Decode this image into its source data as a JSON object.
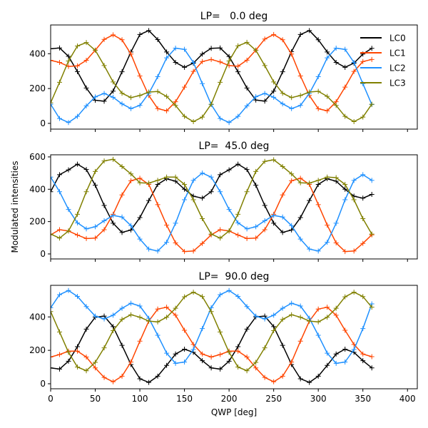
{
  "figure": {
    "ylabel": "Modulated intensities",
    "xlabel": "QWP [deg]"
  },
  "chart_data": [
    {
      "type": "line",
      "title": "LP=   0.0 deg",
      "xlabel": "",
      "ylabel": "",
      "xlim": [
        0,
        411
      ],
      "ylim": [
        -33,
        565
      ],
      "xticks": [
        0,
        50,
        100,
        150,
        200,
        250,
        300,
        350,
        400
      ],
      "xtick_labels_visible": false,
      "yticks": [
        0,
        200,
        400
      ],
      "ytick_labels": [
        "0",
        "200",
        "400"
      ],
      "grid": false,
      "legend": {
        "placement": "top-right",
        "entries": [
          "LC0",
          "LC1",
          "LC2",
          "LC3"
        ]
      },
      "x": [
        0,
        10,
        20,
        30,
        40,
        50,
        60,
        70,
        80,
        90,
        100,
        110,
        120,
        130,
        140,
        150,
        160,
        170,
        180,
        190,
        200,
        210,
        220,
        230,
        240,
        250,
        260,
        270,
        280,
        290,
        300,
        310,
        320,
        330,
        340,
        350,
        360
      ],
      "series": [
        {
          "name": "LC0",
          "color": "#000000",
          "marker": "+",
          "values": [
            428,
            433,
            385,
            297,
            203,
            133,
            127,
            185,
            296,
            410,
            510,
            533,
            481,
            410,
            350,
            322,
            346,
            398,
            431,
            433,
            384,
            296,
            203,
            134,
            128,
            185,
            296,
            412,
            510,
            533,
            480,
            410,
            350,
            322,
            346,
            398,
            431
          ]
        },
        {
          "name": "LC1",
          "color": "#ff4500",
          "marker": "+",
          "values": [
            362,
            350,
            327,
            330,
            362,
            420,
            482,
            508,
            480,
            398,
            272,
            160,
            85,
            72,
            124,
            208,
            298,
            355,
            367,
            353,
            332,
            328,
            363,
            420,
            484,
            510,
            480,
            398,
            272,
            160,
            84,
            72,
            124,
            208,
            298,
            355,
            367
          ]
        },
        {
          "name": "LC2",
          "color": "#1e90ff",
          "marker": "+",
          "values": [
            110,
            28,
            5,
            40,
            100,
            152,
            172,
            150,
            112,
            85,
            103,
            172,
            268,
            376,
            432,
            425,
            350,
            228,
            108,
            28,
            5,
            40,
            100,
            153,
            172,
            150,
            112,
            85,
            103,
            172,
            268,
            376,
            432,
            425,
            350,
            228,
            108
          ]
        },
        {
          "name": "LC3",
          "color": "#808000",
          "marker": "+",
          "values": [
            118,
            236,
            358,
            444,
            464,
            420,
            332,
            238,
            173,
            148,
            160,
            180,
            183,
            155,
            103,
            40,
            10,
            36,
            110,
            236,
            358,
            445,
            465,
            420,
            332,
            238,
            173,
            148,
            160,
            180,
            184,
            155,
            103,
            40,
            10,
            36,
            110
          ]
        }
      ]
    },
    {
      "type": "line",
      "title": "LP=  45.0 deg",
      "xlabel": "",
      "ylabel": "Modulated intensities",
      "xlim": [
        0,
        411
      ],
      "ylim": [
        -31,
        613
      ],
      "xticks": [
        0,
        50,
        100,
        150,
        200,
        250,
        300,
        350,
        400
      ],
      "xtick_labels_visible": false,
      "yticks": [
        0,
        200,
        400,
        600
      ],
      "ytick_labels": [
        "0",
        "200",
        "400",
        "600"
      ],
      "grid": false,
      "x": [
        0,
        10,
        20,
        30,
        40,
        50,
        60,
        70,
        80,
        90,
        100,
        110,
        120,
        130,
        140,
        150,
        160,
        170,
        180,
        190,
        200,
        210,
        220,
        230,
        240,
        250,
        260,
        270,
        280,
        290,
        300,
        310,
        320,
        330,
        340,
        350,
        360
      ],
      "series": [
        {
          "name": "LC0",
          "color": "#000000",
          "marker": "+",
          "values": [
            385,
            490,
            520,
            555,
            522,
            425,
            300,
            190,
            133,
            148,
            225,
            330,
            430,
            465,
            450,
            400,
            357,
            345,
            385,
            490,
            520,
            555,
            522,
            425,
            300,
            190,
            133,
            148,
            225,
            330,
            430,
            465,
            450,
            400,
            357,
            345,
            368
          ]
        },
        {
          "name": "LC1",
          "color": "#ff4500",
          "marker": "+",
          "values": [
            118,
            150,
            142,
            117,
            95,
            98,
            150,
            245,
            365,
            452,
            468,
            430,
            305,
            178,
            68,
            15,
            18,
            65,
            118,
            150,
            142,
            117,
            95,
            98,
            150,
            245,
            365,
            452,
            468,
            430,
            305,
            178,
            68,
            15,
            18,
            65,
            118
          ]
        },
        {
          "name": "LC2",
          "color": "#1e90ff",
          "marker": "+",
          "values": [
            475,
            385,
            275,
            192,
            155,
            168,
            205,
            238,
            228,
            175,
            92,
            30,
            18,
            72,
            190,
            335,
            455,
            500,
            475,
            385,
            275,
            192,
            155,
            168,
            205,
            238,
            228,
            175,
            92,
            30,
            18,
            72,
            190,
            335,
            455,
            490,
            455
          ]
        },
        {
          "name": "LC3",
          "color": "#808000",
          "marker": "+",
          "values": [
            123,
            98,
            142,
            245,
            385,
            510,
            575,
            585,
            540,
            495,
            440,
            438,
            455,
            475,
            475,
            430,
            335,
            218,
            123,
            98,
            142,
            245,
            385,
            510,
            572,
            582,
            540,
            495,
            440,
            438,
            455,
            475,
            472,
            430,
            335,
            218,
            123
          ]
        }
      ]
    },
    {
      "type": "line",
      "title": "LP=  90.0 deg",
      "xlabel": "QWP [deg]",
      "ylabel": "",
      "xlim": [
        0,
        411
      ],
      "ylim": [
        -30,
        589
      ],
      "xticks": [
        0,
        50,
        100,
        150,
        200,
        250,
        300,
        350,
        400
      ],
      "xtick_labels": [
        "0",
        "50",
        "100",
        "150",
        "200",
        "250",
        "300",
        "350",
        "400"
      ],
      "yticks": [
        0,
        200,
        400
      ],
      "ytick_labels": [
        "0",
        "200",
        "400"
      ],
      "grid": false,
      "x": [
        0,
        10,
        20,
        30,
        40,
        50,
        60,
        70,
        80,
        90,
        100,
        110,
        120,
        130,
        140,
        150,
        160,
        170,
        180,
        190,
        200,
        210,
        220,
        230,
        240,
        250,
        260,
        270,
        280,
        290,
        300,
        310,
        320,
        330,
        340,
        350,
        360
      ],
      "series": [
        {
          "name": "LC0",
          "color": "#000000",
          "marker": "+",
          "values": [
            95,
            88,
            135,
            222,
            327,
            398,
            405,
            342,
            230,
            115,
            30,
            8,
            45,
            110,
            178,
            207,
            188,
            138,
            95,
            88,
            135,
            222,
            327,
            400,
            405,
            342,
            230,
            115,
            30,
            8,
            45,
            110,
            178,
            207,
            188,
            138,
            95
          ]
        },
        {
          "name": "LC1",
          "color": "#ff4500",
          "marker": "+",
          "values": [
            160,
            175,
            195,
            195,
            160,
            95,
            38,
            12,
            45,
            130,
            255,
            375,
            447,
            458,
            410,
            320,
            235,
            178,
            160,
            175,
            195,
            195,
            160,
            95,
            38,
            12,
            45,
            130,
            255,
            375,
            447,
            458,
            410,
            320,
            235,
            178,
            162
          ]
        },
        {
          "name": "LC2",
          "color": "#1e90ff",
          "marker": "+",
          "values": [
            455,
            533,
            558,
            523,
            462,
            405,
            388,
            410,
            452,
            482,
            465,
            392,
            290,
            183,
            122,
            130,
            205,
            330,
            455,
            533,
            558,
            523,
            462,
            405,
            388,
            410,
            452,
            482,
            465,
            392,
            290,
            183,
            122,
            130,
            205,
            330,
            478
          ]
        },
        {
          "name": "LC3",
          "color": "#808000",
          "marker": "+",
          "values": [
            432,
            310,
            188,
            100,
            78,
            128,
            215,
            318,
            385,
            413,
            398,
            375,
            370,
            398,
            452,
            520,
            548,
            522,
            432,
            310,
            188,
            100,
            78,
            128,
            215,
            318,
            385,
            413,
            398,
            375,
            370,
            398,
            452,
            520,
            548,
            522,
            458
          ]
        }
      ]
    }
  ]
}
